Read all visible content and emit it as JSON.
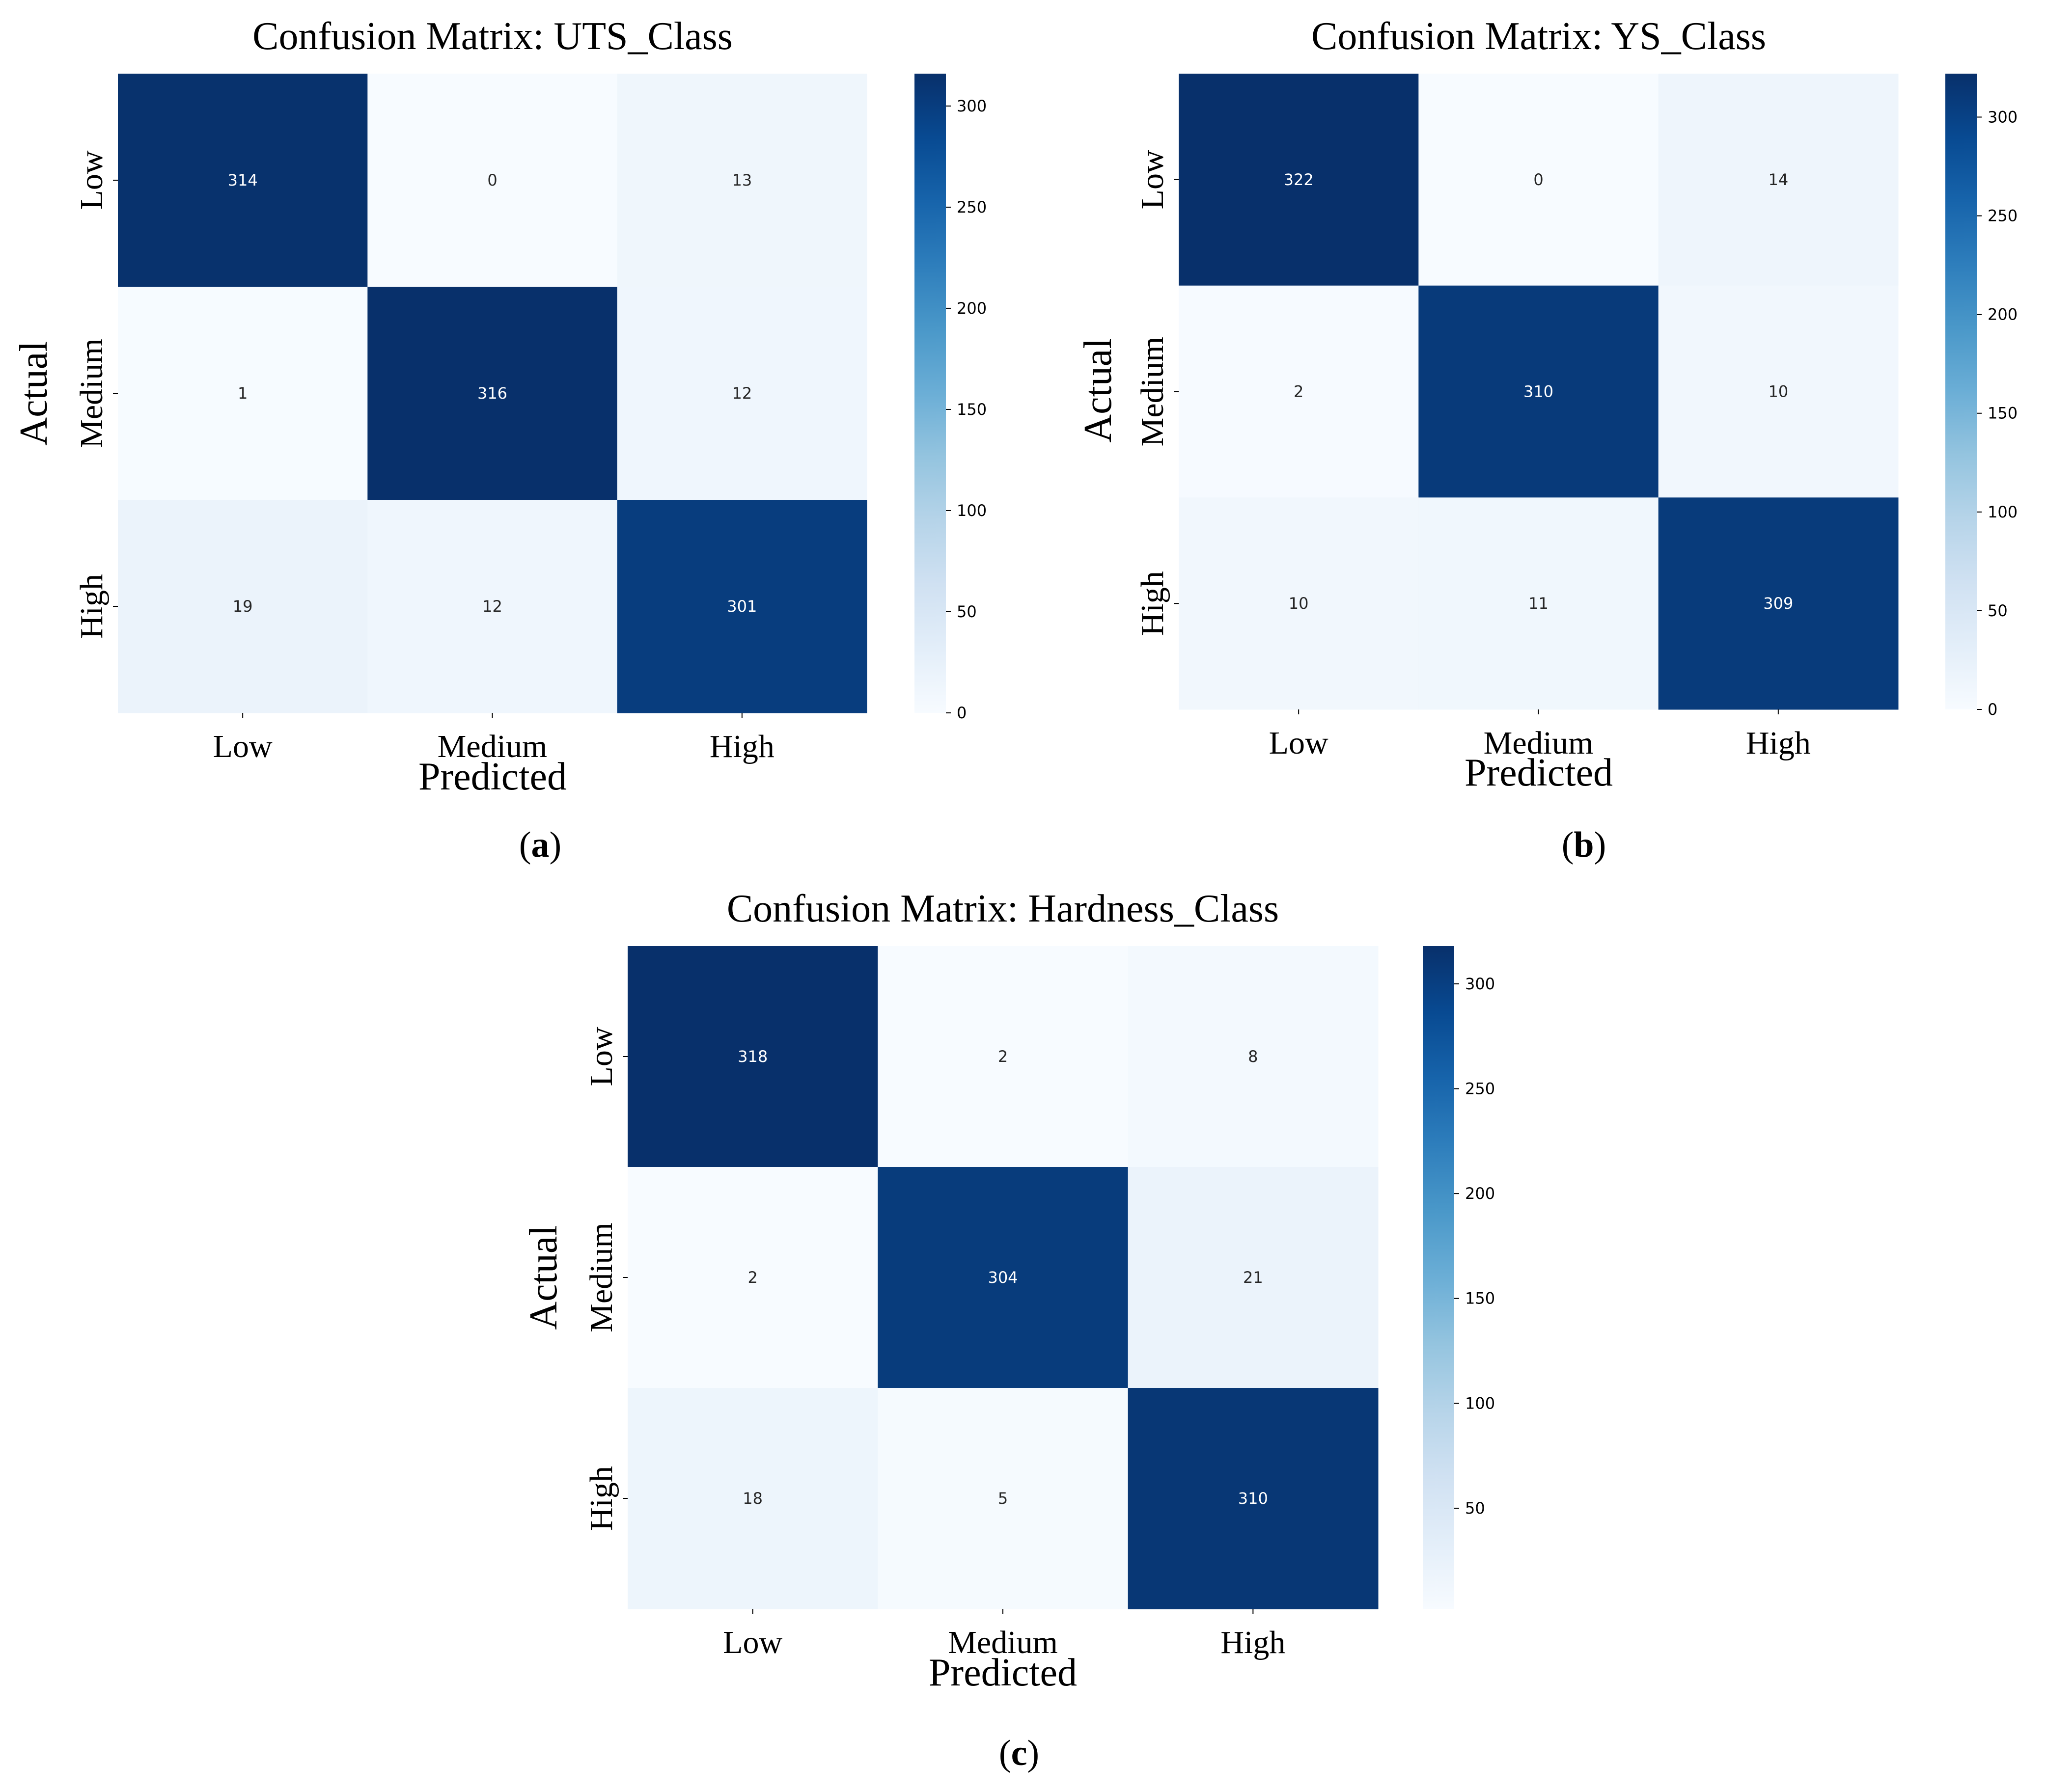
{
  "chart_data": [
    {
      "type": "heatmap",
      "title": "Confusion Matrix: UTS_Class",
      "xlabel": "Predicted",
      "ylabel": "Actual",
      "x_categories": [
        "Low",
        "Medium",
        "High"
      ],
      "y_categories": [
        "Low",
        "Medium",
        "High"
      ],
      "matrix": [
        [
          314,
          0,
          13
        ],
        [
          1,
          316,
          12
        ],
        [
          19,
          12,
          301
        ]
      ],
      "colorbar": {
        "min": 0,
        "max": 316,
        "ticks": [
          0,
          50,
          100,
          150,
          200,
          250,
          300
        ],
        "colormap": "Blues"
      },
      "panel_label": {
        "open": "(",
        "letter": "a",
        "close": ")"
      }
    },
    {
      "type": "heatmap",
      "title": "Confusion Matrix: YS_Class",
      "xlabel": "Predicted",
      "ylabel": "Actual",
      "x_categories": [
        "Low",
        "Medium",
        "High"
      ],
      "y_categories": [
        "Low",
        "Medium",
        "High"
      ],
      "matrix": [
        [
          322,
          0,
          14
        ],
        [
          2,
          310,
          10
        ],
        [
          10,
          11,
          309
        ]
      ],
      "colorbar": {
        "min": 0,
        "max": 322,
        "ticks": [
          0,
          50,
          100,
          150,
          200,
          250,
          300
        ],
        "colormap": "Blues"
      },
      "panel_label": {
        "open": "(",
        "letter": "b",
        "close": ")"
      }
    },
    {
      "type": "heatmap",
      "title": "Confusion Matrix: Hardness_Class",
      "xlabel": "Predicted",
      "ylabel": "Actual",
      "x_categories": [
        "Low",
        "Medium",
        "High"
      ],
      "y_categories": [
        "Low",
        "Medium",
        "High"
      ],
      "matrix": [
        [
          318,
          2,
          8
        ],
        [
          2,
          304,
          21
        ],
        [
          18,
          5,
          310
        ]
      ],
      "colorbar": {
        "min": 2,
        "max": 318,
        "ticks": [
          50,
          100,
          150,
          200,
          250,
          300
        ],
        "colormap": "Blues"
      },
      "panel_label": {
        "open": "(",
        "letter": "c",
        "close": ")"
      }
    }
  ]
}
